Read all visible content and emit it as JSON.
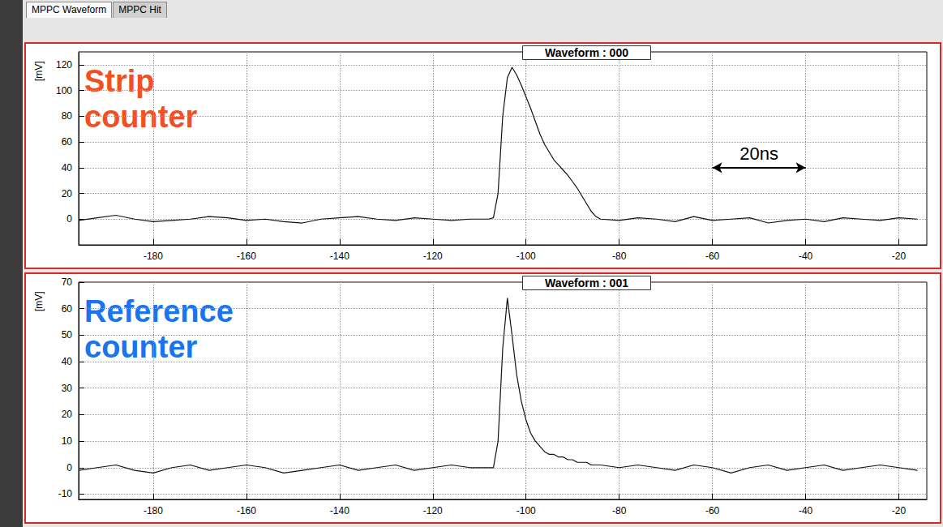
{
  "tabs": [
    "MPPC Waveform",
    "MPPC Hit"
  ],
  "chart_data": [
    {
      "type": "line",
      "title": "Waveform : 000",
      "ylabel": "[mV]",
      "color": "#111111",
      "grid": true,
      "xlim": [
        -196,
        -14
      ],
      "xticks": [
        -180,
        -160,
        -140,
        -120,
        -100,
        -80,
        -60,
        -40,
        -20
      ],
      "ylim": [
        -20,
        130
      ],
      "yticks": [
        0,
        20,
        40,
        60,
        80,
        100,
        120
      ],
      "annotations": [
        {
          "text": "Strip counter",
          "color": "#f25022"
        },
        {
          "text": "20ns",
          "x": [
            -60,
            -40
          ],
          "y": 40
        }
      ],
      "x": [
        -196,
        -192,
        -188,
        -184,
        -180,
        -176,
        -172,
        -168,
        -164,
        -160,
        -156,
        -152,
        -148,
        -144,
        -140,
        -136,
        -132,
        -128,
        -124,
        -120,
        -116,
        -112,
        -108,
        -107,
        -106,
        -105,
        -104,
        -103,
        -102,
        -101,
        -100,
        -99,
        -98,
        -97,
        -96,
        -95,
        -94,
        -93,
        -92,
        -91,
        -90,
        -89,
        -88,
        -87,
        -86,
        -85,
        -84,
        -80,
        -76,
        -72,
        -68,
        -64,
        -60,
        -56,
        -52,
        -48,
        -44,
        -40,
        -36,
        -32,
        -28,
        -24,
        -20,
        -16
      ],
      "values": [
        -1,
        1,
        3,
        0,
        -2,
        -1,
        0,
        2,
        1,
        -1,
        0,
        -2,
        -3,
        0,
        1,
        2,
        0,
        -1,
        1,
        0,
        -1,
        0,
        0,
        1,
        20,
        80,
        110,
        118,
        112,
        104,
        95,
        86,
        76,
        66,
        58,
        52,
        46,
        42,
        38,
        34,
        29,
        24,
        18,
        12,
        6,
        2,
        0,
        -1,
        1,
        0,
        -2,
        2,
        -1,
        0,
        1,
        -3,
        -1,
        0,
        -2,
        1,
        0,
        -1,
        1,
        0
      ]
    },
    {
      "type": "line",
      "title": "Waveform : 001",
      "ylabel": "[mV]",
      "color": "#111111",
      "grid": true,
      "xlim": [
        -196,
        -14
      ],
      "xticks": [
        -180,
        -160,
        -140,
        -120,
        -100,
        -80,
        -60,
        -40,
        -20
      ],
      "ylim": [
        -12,
        70
      ],
      "yticks": [
        -10,
        0,
        10,
        20,
        30,
        40,
        50,
        60,
        70
      ],
      "annotations": [
        {
          "text": "Reference counter",
          "color": "#1a73f0"
        }
      ],
      "x": [
        -196,
        -192,
        -188,
        -184,
        -180,
        -176,
        -172,
        -168,
        -164,
        -160,
        -156,
        -152,
        -148,
        -144,
        -140,
        -136,
        -132,
        -128,
        -124,
        -120,
        -116,
        -112,
        -108,
        -107,
        -106,
        -105,
        -104,
        -103,
        -102,
        -101,
        -100,
        -99,
        -98,
        -97,
        -96,
        -95,
        -94,
        -93,
        -92,
        -91,
        -90,
        -89,
        -88,
        -87,
        -86,
        -85,
        -84,
        -80,
        -76,
        -72,
        -68,
        -64,
        -60,
        -56,
        -52,
        -48,
        -44,
        -40,
        -36,
        -32,
        -28,
        -24,
        -20,
        -16
      ],
      "values": [
        -1,
        0,
        1,
        -1,
        -2,
        0,
        1,
        -1,
        0,
        1,
        0,
        -2,
        -1,
        0,
        1,
        -1,
        0,
        1,
        -1,
        0,
        1,
        0,
        0,
        0,
        10,
        45,
        64,
        50,
        35,
        25,
        18,
        13,
        10,
        8,
        6,
        5,
        5,
        4,
        4,
        3,
        3,
        2,
        2,
        2,
        1,
        1,
        1,
        0,
        1,
        0,
        -1,
        1,
        0,
        -2,
        0,
        1,
        -1,
        0,
        1,
        -1,
        0,
        1,
        0,
        -1
      ]
    }
  ]
}
